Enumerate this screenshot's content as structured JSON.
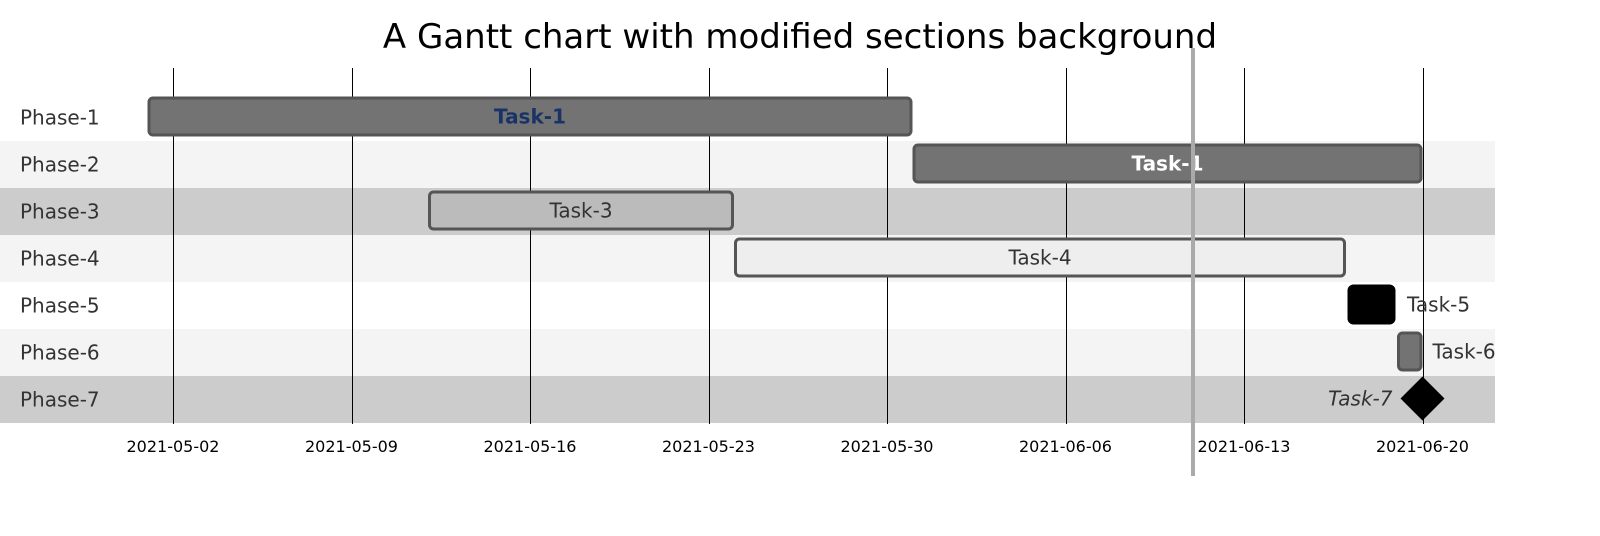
{
  "chart_data": {
    "type": "gantt",
    "title": "A Gantt chart with modified sections background",
    "date_format": "YYYY-MM-DD",
    "x_range": [
      "2021-04-30",
      "2021-06-22"
    ],
    "x_ticks": [
      "2021-05-02",
      "2021-05-09",
      "2021-05-16",
      "2021-05-23",
      "2021-05-30",
      "2021-06-06",
      "2021-06-13",
      "2021-06-20"
    ],
    "today_marker": "2021-06-11",
    "grid": true,
    "sections": [
      {
        "label": "Phase-1",
        "background": "#ffffff"
      },
      {
        "label": "Phase-2",
        "background": "#f4f4f4"
      },
      {
        "label": "Phase-3",
        "background": "#cccccc"
      },
      {
        "label": "Phase-4",
        "background": "#f4f4f4"
      },
      {
        "label": "Phase-5",
        "background": "#ffffff"
      },
      {
        "label": "Phase-6",
        "background": "#f4f4f4"
      },
      {
        "label": "Phase-7",
        "background": "#cccccc"
      }
    ],
    "tasks": [
      {
        "name": "Task-1",
        "section": 0,
        "start": "2021-05-01",
        "end": "2021-05-31",
        "style": "done",
        "fill": "#737373",
        "stroke": "#555555",
        "text_color": "#1a3366",
        "text_weight": "bold",
        "text_style": "normal",
        "label_position": "inside",
        "milestone": false
      },
      {
        "name": "Task-1",
        "section": 1,
        "start": "2021-05-31",
        "end": "2021-06-20",
        "style": "done",
        "fill": "#737373",
        "stroke": "#555555",
        "text_color": "#ffffff",
        "text_weight": "bold",
        "text_style": "normal",
        "label_position": "inside",
        "milestone": false
      },
      {
        "name": "Task-3",
        "section": 2,
        "start": "2021-05-12",
        "end": "2021-05-24",
        "style": "default",
        "fill": "#bbbbbb",
        "stroke": "#555555",
        "text_color": "#333333",
        "text_weight": "normal",
        "text_style": "normal",
        "label_position": "inside",
        "milestone": false
      },
      {
        "name": "Task-4",
        "section": 3,
        "start": "2021-05-24",
        "end": "2021-06-17",
        "style": "active",
        "fill": "#eeeeee",
        "stroke": "#555555",
        "text_color": "#333333",
        "text_weight": "normal",
        "text_style": "normal",
        "label_position": "inside",
        "milestone": false
      },
      {
        "name": "Task-5",
        "section": 4,
        "start": "2021-06-17",
        "end": "2021-06-19",
        "style": "critical",
        "fill": "#000000",
        "stroke": "#000000",
        "text_color": "#333333",
        "text_weight": "normal",
        "text_style": "normal",
        "label_position": "right",
        "milestone": false
      },
      {
        "name": "Task-6",
        "section": 5,
        "start": "2021-06-19",
        "end": "2021-06-20",
        "style": "done",
        "fill": "#737373",
        "stroke": "#555555",
        "text_color": "#333333",
        "text_weight": "normal",
        "text_style": "normal",
        "label_position": "right",
        "milestone": false
      },
      {
        "name": "Task-7",
        "section": 6,
        "start": "2021-06-20",
        "end": "2021-06-20",
        "style": "milestone",
        "fill": "#000000",
        "stroke": "#000000",
        "text_color": "#333333",
        "text_weight": "normal",
        "text_style": "italic",
        "label_position": "left",
        "milestone": true
      }
    ]
  }
}
